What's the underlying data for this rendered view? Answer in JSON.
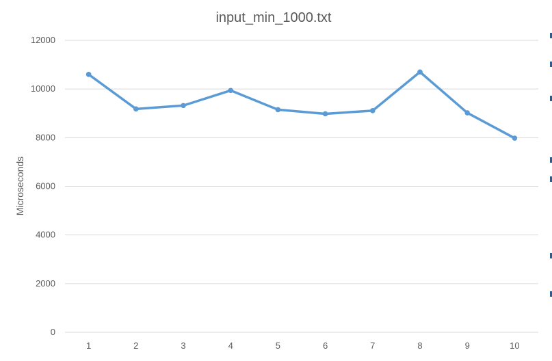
{
  "chart_data": {
    "type": "line",
    "title": "input_min_1000.txt",
    "xlabel": "",
    "ylabel": "Microseconds",
    "categories": [
      "1",
      "2",
      "3",
      "4",
      "5",
      "6",
      "7",
      "8",
      "9",
      "10"
    ],
    "series": [
      {
        "values": [
          10600,
          9180,
          9320,
          9940,
          9150,
          8980,
          9110,
          10700,
          9020,
          7980
        ]
      }
    ],
    "ylim": [
      0,
      12000
    ],
    "yticks": [
      0,
      2000,
      4000,
      6000,
      8000,
      10000,
      12000
    ],
    "grid": true,
    "legend": "none",
    "colors": {
      "line": "#5b9bd5",
      "grid": "#d9d9d9",
      "text": "#595959"
    }
  }
}
